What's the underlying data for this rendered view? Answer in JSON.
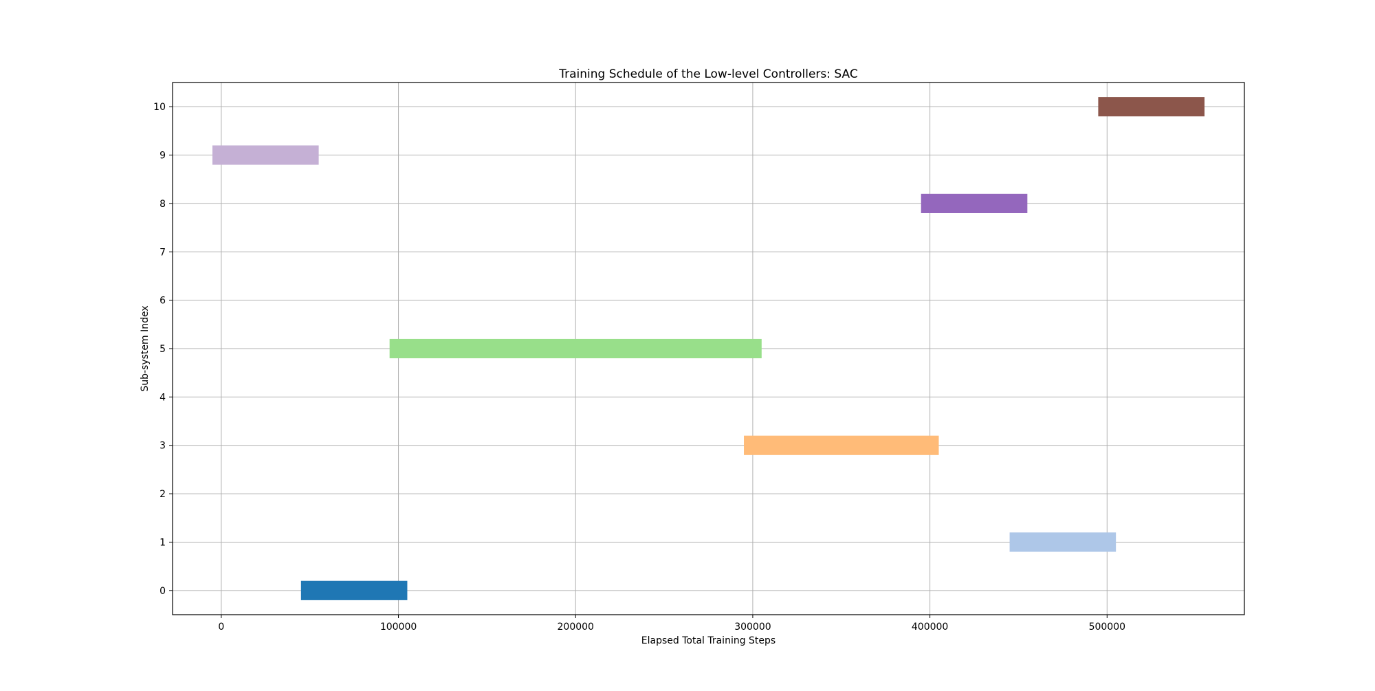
{
  "chart_data": {
    "type": "bar",
    "orientation": "horizontal",
    "title": "Training Schedule of the Low-level Controllers: SAC",
    "xlabel": "Elapsed Total Training Steps",
    "ylabel": "Sub-system Index",
    "xlim": [
      -27500,
      577500
    ],
    "ylim": [
      -0.5,
      10.5
    ],
    "xticks": [
      0,
      100000,
      200000,
      300000,
      400000,
      500000
    ],
    "xtick_labels": [
      "0",
      "100000",
      "200000",
      "300000",
      "400000",
      "500000"
    ],
    "yticks": [
      0,
      1,
      2,
      3,
      4,
      5,
      6,
      7,
      8,
      9,
      10
    ],
    "ytick_labels": [
      "0",
      "1",
      "2",
      "3",
      "4",
      "5",
      "6",
      "7",
      "8",
      "9",
      "10"
    ],
    "grid": true,
    "bar_height": 0.4,
    "bars": [
      {
        "index": 9,
        "start": -5000,
        "end": 55000,
        "color": "#c5b0d5"
      },
      {
        "index": 0,
        "start": 45000,
        "end": 105000,
        "color": "#1f77b4"
      },
      {
        "index": 5,
        "start": 95000,
        "end": 305000,
        "color": "#98df8a"
      },
      {
        "index": 3,
        "start": 295000,
        "end": 405000,
        "color": "#ffbb78"
      },
      {
        "index": 8,
        "start": 395000,
        "end": 455000,
        "color": "#9467bd"
      },
      {
        "index": 1,
        "start": 445000,
        "end": 505000,
        "color": "#aec7e8"
      },
      {
        "index": 10,
        "start": 495000,
        "end": 555000,
        "color": "#8c564b"
      }
    ]
  }
}
